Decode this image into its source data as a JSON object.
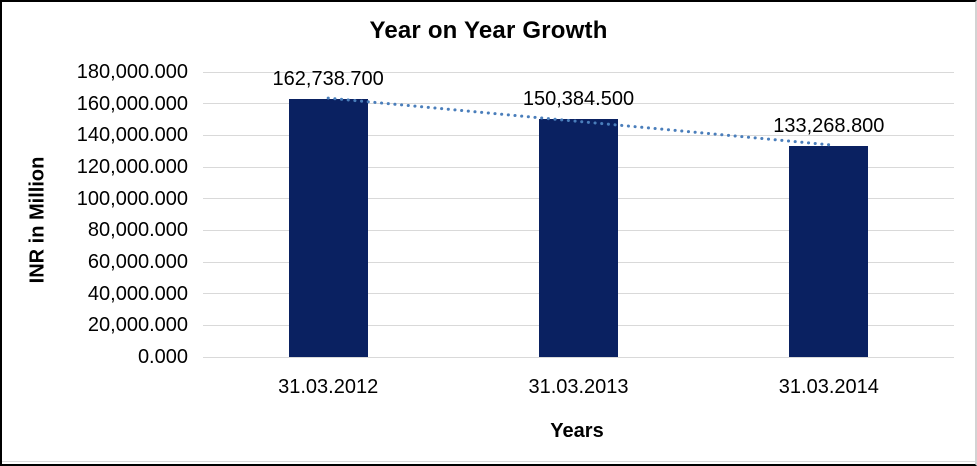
{
  "chart_data": {
    "type": "bar",
    "title": "Year on Year Growth",
    "xlabel": "Years",
    "ylabel": "INR in Million",
    "categories": [
      "31.03.2012",
      "31.03.2013",
      "31.03.2014"
    ],
    "values": [
      162738.7,
      150384.5,
      133268.8
    ],
    "data_labels": [
      "162,738.700",
      "150,384.500",
      "133,268.800"
    ],
    "ytick_labels": [
      "0.000",
      "20,000.000",
      "40,000.000",
      "60,000.000",
      "80,000.000",
      "100,000.000",
      "120,000.000",
      "140,000.000",
      "160,000.000",
      "180,000.000"
    ],
    "ylim": [
      0,
      180000
    ],
    "ytick_step": 20000,
    "grid": true,
    "legend": "none",
    "trendline": {
      "type": "linear",
      "style": "dotted"
    },
    "colors": {
      "bar": "#0a2161",
      "trendline": "#4a7ebb",
      "gridline": "#d9d9d9",
      "text": "#000000",
      "frame": "#d3d3d3"
    }
  }
}
